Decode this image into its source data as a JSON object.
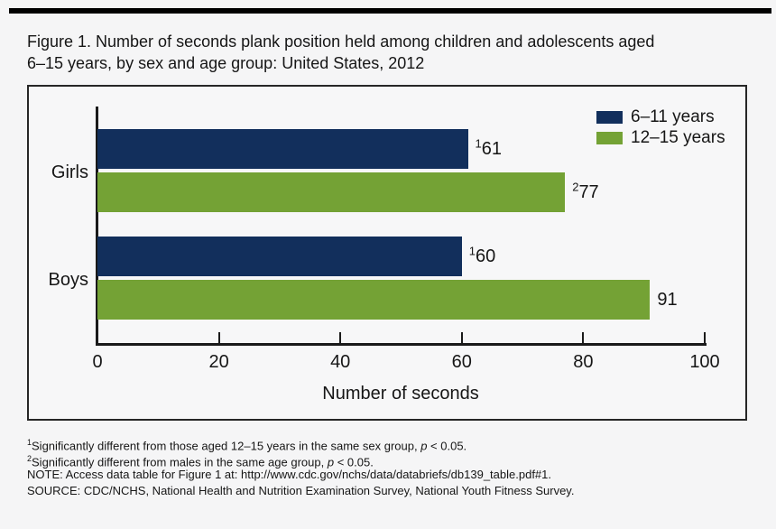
{
  "page": {
    "background": "#f5f5f6",
    "top_bar_color": "#000000"
  },
  "title": {
    "line1": "Figure 1. Number of seconds plank position held among children and adolescents aged",
    "line2": "6–15 years, by sex and age group: United States, 2012"
  },
  "chart_data": {
    "type": "bar",
    "orientation": "horizontal",
    "title": "Figure 1. Number of seconds plank position held among children and adolescents aged 6–15 years, by sex and age group: United States, 2012",
    "categories": [
      "Girls",
      "Boys"
    ],
    "series": [
      {
        "name": "6–11 years",
        "color": "#122f5c",
        "values": [
          61,
          60
        ],
        "value_superscripts": [
          "1",
          "1"
        ]
      },
      {
        "name": "12–15 years",
        "color": "#74a235",
        "values": [
          77,
          91
        ],
        "value_superscripts": [
          "2",
          ""
        ]
      }
    ],
    "xlabel": "Number of seconds",
    "ylabel": "",
    "xlim": [
      0,
      100
    ],
    "xticks": [
      0,
      20,
      40,
      60,
      80,
      100
    ],
    "grid": false,
    "legend_position": "top-right",
    "axis_color": "#1a1a1a"
  },
  "footnotes": {
    "fn1": {
      "sup": "1",
      "pre": "Significantly different from those aged 12–15 years in the same sex group, ",
      "p": "p",
      "post": " < 0.05."
    },
    "fn2": {
      "sup": "2",
      "pre": "Significantly different from males in the same age group, ",
      "p": "p",
      "post": " < 0.05."
    },
    "note": "NOTE: Access data table for Figure 1 at: http://www.cdc.gov/nchs/data/databriefs/db139_table.pdf#1.",
    "source": "SOURCE: CDC/NCHS, National Health and Nutrition Examination Survey, National Youth Fitness Survey."
  }
}
